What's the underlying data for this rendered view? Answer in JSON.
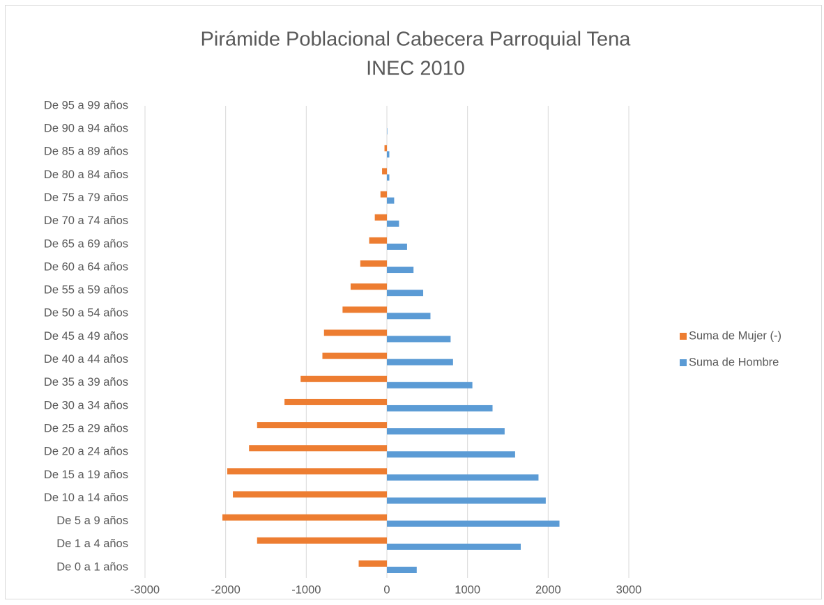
{
  "chart_data": {
    "type": "bar",
    "orientation": "horizontal",
    "title": [
      "Pirámide Poblacional Cabecera Parroquial Tena",
      "INEC 2010"
    ],
    "categories": [
      "De 0 a 1 años",
      "De 1 a 4 años",
      "De 5 a 9 años",
      "De 10 a 14 años",
      "De 15 a 19 años",
      "De 20 a 24 años",
      "De 25 a 29 años",
      "De 30 a 34 años",
      "De 35 a 39 años",
      "De 40 a 44 años",
      "De 45 a 49 años",
      "De 50 a 54 años",
      "De 55 a 59 años",
      "De 60 a 64 años",
      "De 65 a 69 años",
      "De 70 a 74 años",
      "De 75 a 79 años",
      "De 80 a 84 años",
      "De 85 a 89 años",
      "De 90 a 94 años",
      "De 95 a 99 años"
    ],
    "series": [
      {
        "name": "Suma de Mujer (-)",
        "color": "#ed7d31",
        "values": [
          -350,
          -1610,
          -2040,
          -1910,
          -1980,
          -1710,
          -1610,
          -1270,
          -1070,
          -800,
          -780,
          -550,
          -450,
          -330,
          -220,
          -150,
          -80,
          -60,
          -30,
          0,
          0
        ]
      },
      {
        "name": "Suma de Hombre",
        "color": "#5b9bd5",
        "values": [
          370,
          1660,
          2140,
          1970,
          1880,
          1590,
          1460,
          1310,
          1060,
          820,
          790,
          540,
          450,
          330,
          250,
          150,
          90,
          30,
          30,
          5,
          0
        ]
      }
    ],
    "xlim": [
      -3000,
      3000
    ],
    "xticks": [
      -3000,
      -2000,
      -1000,
      0,
      1000,
      2000,
      3000
    ],
    "grid": true,
    "legend": "right"
  }
}
